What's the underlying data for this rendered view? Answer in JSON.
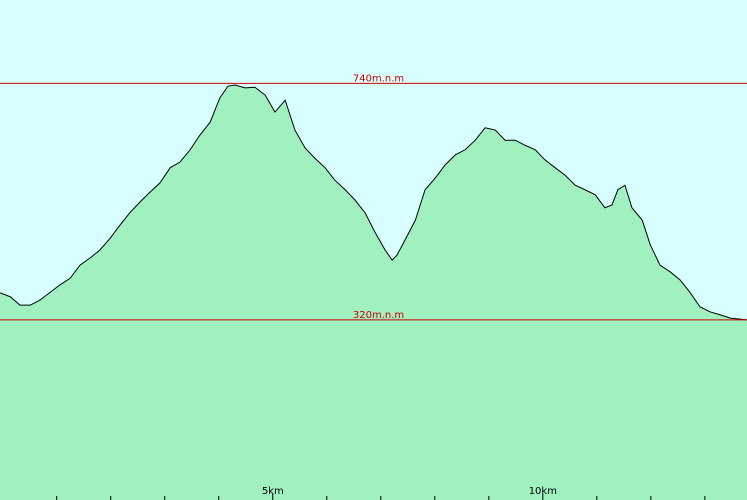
{
  "chart_data": {
    "type": "area",
    "x": [
      -0.05,
      0.14,
      0.32,
      0.51,
      0.69,
      0.88,
      1.06,
      1.25,
      1.43,
      1.62,
      1.8,
      1.99,
      2.17,
      2.36,
      2.54,
      2.73,
      2.91,
      3.1,
      3.28,
      3.47,
      3.65,
      3.84,
      4.02,
      4.17,
      4.3,
      4.49,
      4.67,
      4.86,
      5.04,
      5.23,
      5.41,
      5.6,
      5.78,
      5.97,
      6.15,
      6.34,
      6.52,
      6.71,
      6.89,
      7.08,
      7.21,
      7.3,
      7.45,
      7.64,
      7.82,
      8.01,
      8.19,
      8.38,
      8.56,
      8.75,
      8.93,
      9.12,
      9.3,
      9.49,
      9.67,
      9.86,
      10.04,
      10.23,
      10.41,
      10.6,
      10.78,
      10.97,
      11.15,
      11.28,
      11.39,
      11.52,
      11.65,
      11.84,
      11.99,
      12.17,
      12.36,
      12.54,
      12.73,
      12.91,
      13.1,
      13.28,
      13.47,
      13.78
    ],
    "values": [
      368,
      361,
      346,
      346,
      355,
      369,
      382,
      394,
      417,
      430,
      444,
      465,
      488,
      511,
      529,
      547,
      563,
      590,
      600,
      622,
      648,
      671,
      714,
      735,
      737,
      732,
      733,
      719,
      689,
      710,
      657,
      625,
      607,
      590,
      568,
      551,
      533,
      510,
      476,
      444,
      426,
      435,
      462,
      497,
      551,
      572,
      595,
      613,
      622,
      639,
      661,
      657,
      639,
      639,
      630,
      622,
      604,
      590,
      577,
      559,
      551,
      542,
      519,
      524,
      551,
      559,
      519,
      497,
      453,
      417,
      405,
      391,
      368,
      343,
      334,
      329,
      323,
      320
    ],
    "color": "#a0f0c0",
    "line_color": "#000000",
    "background": "#d8ffff",
    "xlim": [
      -0.05,
      13.78
    ],
    "ylim": [
      0,
      888
    ],
    "xticks": [
      {
        "value": 5,
        "label": "5km"
      },
      {
        "value": 10,
        "label": "10km"
      }
    ],
    "xminorticks": [
      1,
      2,
      3,
      4,
      6,
      7,
      8,
      9,
      11,
      12,
      13
    ],
    "reference_lines": [
      {
        "value": 740,
        "label": "740m.n.m",
        "color": "#d00000"
      },
      {
        "value": 320,
        "label": "320m.n.m",
        "color": "#d00000"
      }
    ]
  }
}
